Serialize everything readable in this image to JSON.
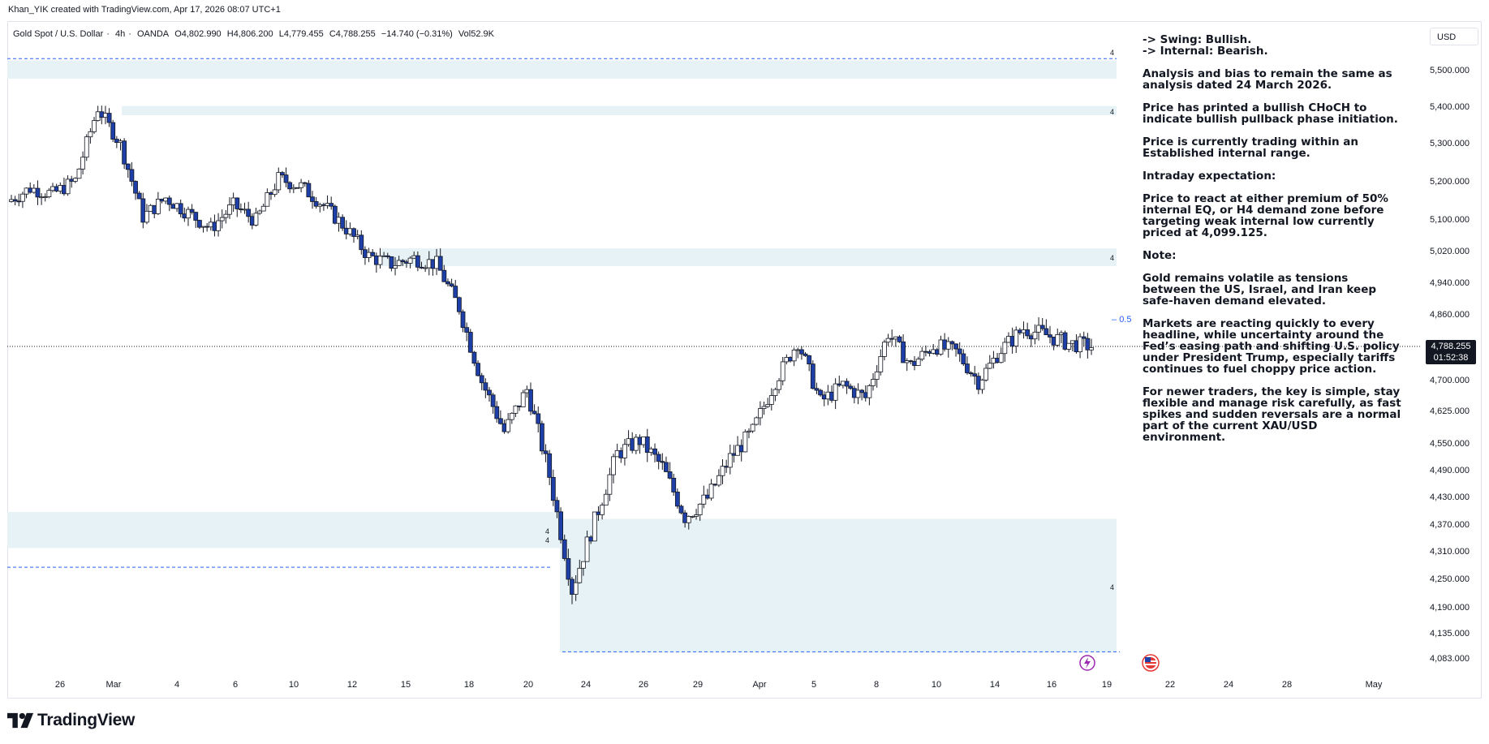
{
  "header": {
    "credit": "Khan_YIK created with TradingView.com, Apr 17, 2026 08:07 UTC+1"
  },
  "symbol": {
    "name": "Gold Spot / U.S. Dollar",
    "timeframe": "4h",
    "exchange": "OANDA",
    "open": "O4,802.990",
    "high": "H4,806.200",
    "low": "L4,779.455",
    "close": "C4,788.255",
    "change": "−14.740 (−0.31%)",
    "volume": "Vol52.9K"
  },
  "currency": "USD",
  "last_price": {
    "value": "4,788.255",
    "countdown": "01:52:38"
  },
  "fib_label": "0.5",
  "zone_marker": "4",
  "brand": {
    "name": "TradingView"
  },
  "notes": {
    "swing": "-> Swing:  Bullish.",
    "internal": "-> Internal:  Bearish.",
    "p1": "Analysis and bias to remain the same as analysis dated 24 March 2026.",
    "p2": "Price has printed a bullish CHoCH to indicate bullish pullback phase initiation.",
    "p3": "Price is currently trading within an Established internal range.",
    "p4": "Intraday expectation:",
    "p5": "Price to react at either premium of 50% internal EQ, or H4 demand zone before targeting weak internal low currently priced at 4,099.125.",
    "p6": "Note:",
    "p7": "Gold remains volatile as tensions between the US, Israel, and Iran keep safe-haven demand elevated.",
    "p8": "Markets are reacting quickly to every headline, while uncertainty around the Fed’s easing path and shifting U.S. policy under President Trump, especially tariffs continues to fuel choppy price action.",
    "p9": "For newer traders, the key is simple, stay flexible and manage risk carefully, as fast spikes and sudden reversals are a normal part of the current XAU/USD environment."
  },
  "colors": {
    "bull_body": "#ffffff",
    "bear_body": "#1e3fa8",
    "wick": "#131722",
    "zone": "#e6f2f5",
    "dashed": "#2962ff"
  },
  "chart_data": {
    "type": "candlestick",
    "instrument": "XAUUSD",
    "interval": "4h",
    "y_ticks": [
      "5,500.000",
      "5,400.000",
      "5,300.000",
      "5,200.000",
      "5,100.000",
      "5,020.000",
      "4,940.000",
      "4,860.000",
      "4,788.255",
      "4,700.000",
      "4,625.000",
      "4,550.000",
      "4,490.000",
      "4,430.000",
      "4,370.000",
      "4,310.000",
      "4,250.000",
      "4,190.000",
      "4,135.000",
      "4,083.000"
    ],
    "x_ticks": [
      "26",
      "Mar",
      "4",
      "6",
      "10",
      "12",
      "15",
      "18",
      "20",
      "24",
      "26",
      "29",
      "Apr",
      "5",
      "8",
      "10",
      "14",
      "16",
      "19",
      "22",
      "24",
      "28",
      "May"
    ],
    "zones": [
      {
        "top": 5530,
        "bottom": 5480
      },
      {
        "top": 5405,
        "bottom": 5380
      },
      {
        "top": 5030,
        "bottom": 4985
      },
      {
        "top": 4400,
        "bottom": 4320
      },
      {
        "top": 4385,
        "bottom": 4098
      }
    ],
    "levels": [
      {
        "price": 5535,
        "style": "dashed"
      },
      {
        "price": 4278,
        "style": "dashed"
      },
      {
        "price": 4099.125,
        "style": "dashed"
      },
      {
        "price": 4788.255,
        "style": "dotted"
      }
    ],
    "path": [
      [
        "Feb 24",
        5150
      ],
      [
        "Feb 25",
        5185
      ],
      [
        "Feb 26",
        5170
      ],
      [
        "Feb 27",
        5205
      ],
      [
        "Mar 1",
        5400
      ],
      [
        "Mar 2",
        5300
      ],
      [
        "Mar 3",
        5110
      ],
      [
        "Mar 4",
        5160
      ],
      [
        "Mar 5",
        5120
      ],
      [
        "Mar 6",
        5080
      ],
      [
        "Mar 8",
        5140
      ],
      [
        "Mar 9",
        5100
      ],
      [
        "Mar 10",
        5210
      ],
      [
        "Mar 11",
        5190
      ],
      [
        "Mar 12",
        5140
      ],
      [
        "Mar 13",
        5080
      ],
      [
        "Mar 15",
        5010
      ],
      [
        "Mar 16",
        4990
      ],
      [
        "Mar 17",
        5005
      ],
      [
        "Mar 18",
        4990
      ],
      [
        "Mar 19",
        4880
      ],
      [
        "Mar 19b",
        4700
      ],
      [
        "Mar 20",
        4580
      ],
      [
        "Mar 20b",
        4680
      ],
      [
        "Mar 21",
        4480
      ],
      [
        "Mar 22",
        4230
      ],
      [
        "Mar 23",
        4380
      ],
      [
        "Mar 24",
        4530
      ],
      [
        "Mar 25",
        4560
      ],
      [
        "Mar 26",
        4500
      ],
      [
        "Mar 27",
        4390
      ],
      [
        "Mar 28",
        4430
      ],
      [
        "Mar 30",
        4520
      ],
      [
        "Mar 31",
        4580
      ],
      [
        "Apr 1",
        4700
      ],
      [
        "Apr 2",
        4800
      ],
      [
        "Apr 3",
        4650
      ],
      [
        "Apr 5",
        4690
      ],
      [
        "Apr 6",
        4660
      ],
      [
        "Apr 7",
        4820
      ],
      [
        "Apr 8",
        4740
      ],
      [
        "Apr 9",
        4790
      ],
      [
        "Apr 10",
        4775
      ],
      [
        "Apr 11",
        4700
      ],
      [
        "Apr 13",
        4780
      ],
      [
        "Apr 14",
        4830
      ],
      [
        "Apr 15",
        4815
      ],
      [
        "Apr 16",
        4795
      ],
      [
        "Apr 17",
        4788.255
      ]
    ]
  }
}
